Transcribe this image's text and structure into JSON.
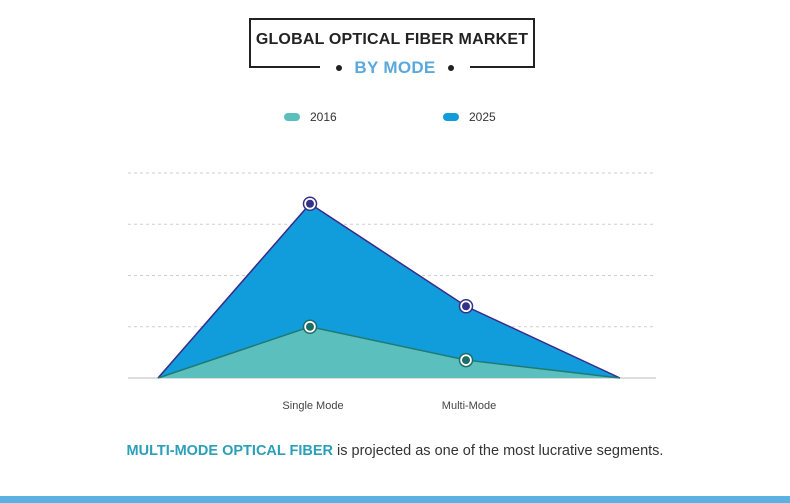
{
  "header": {
    "title": "GLOBAL OPTICAL FIBER MARKET",
    "subtitle": "BY MODE"
  },
  "colors": {
    "series_2016": "#5bbfbd",
    "series_2025": "#119cdb",
    "line_2016": "#1f7a73",
    "line_2025": "#3a2a8a",
    "marker_2016": "#1e6d66",
    "marker_2025": "#33318a",
    "accent_text": "#2a9fb7",
    "subtitle": "#5aa8dc"
  },
  "legend": {
    "items": [
      {
        "label": "2016"
      },
      {
        "label": "2025"
      }
    ]
  },
  "chart_data": {
    "type": "area",
    "categories": [
      "Single Mode",
      "Multi-Mode"
    ],
    "series": [
      {
        "name": "2016",
        "values": [
          1.0,
          0.35
        ]
      },
      {
        "name": "2025",
        "values": [
          3.4,
          1.4
        ]
      }
    ],
    "ylim": [
      0,
      4
    ],
    "grid": true,
    "legend_position": "top"
  },
  "footer": {
    "highlight": "MULTI-MODE OPTICAL FIBER",
    "text": " is projected as one of the most lucrative segments."
  }
}
